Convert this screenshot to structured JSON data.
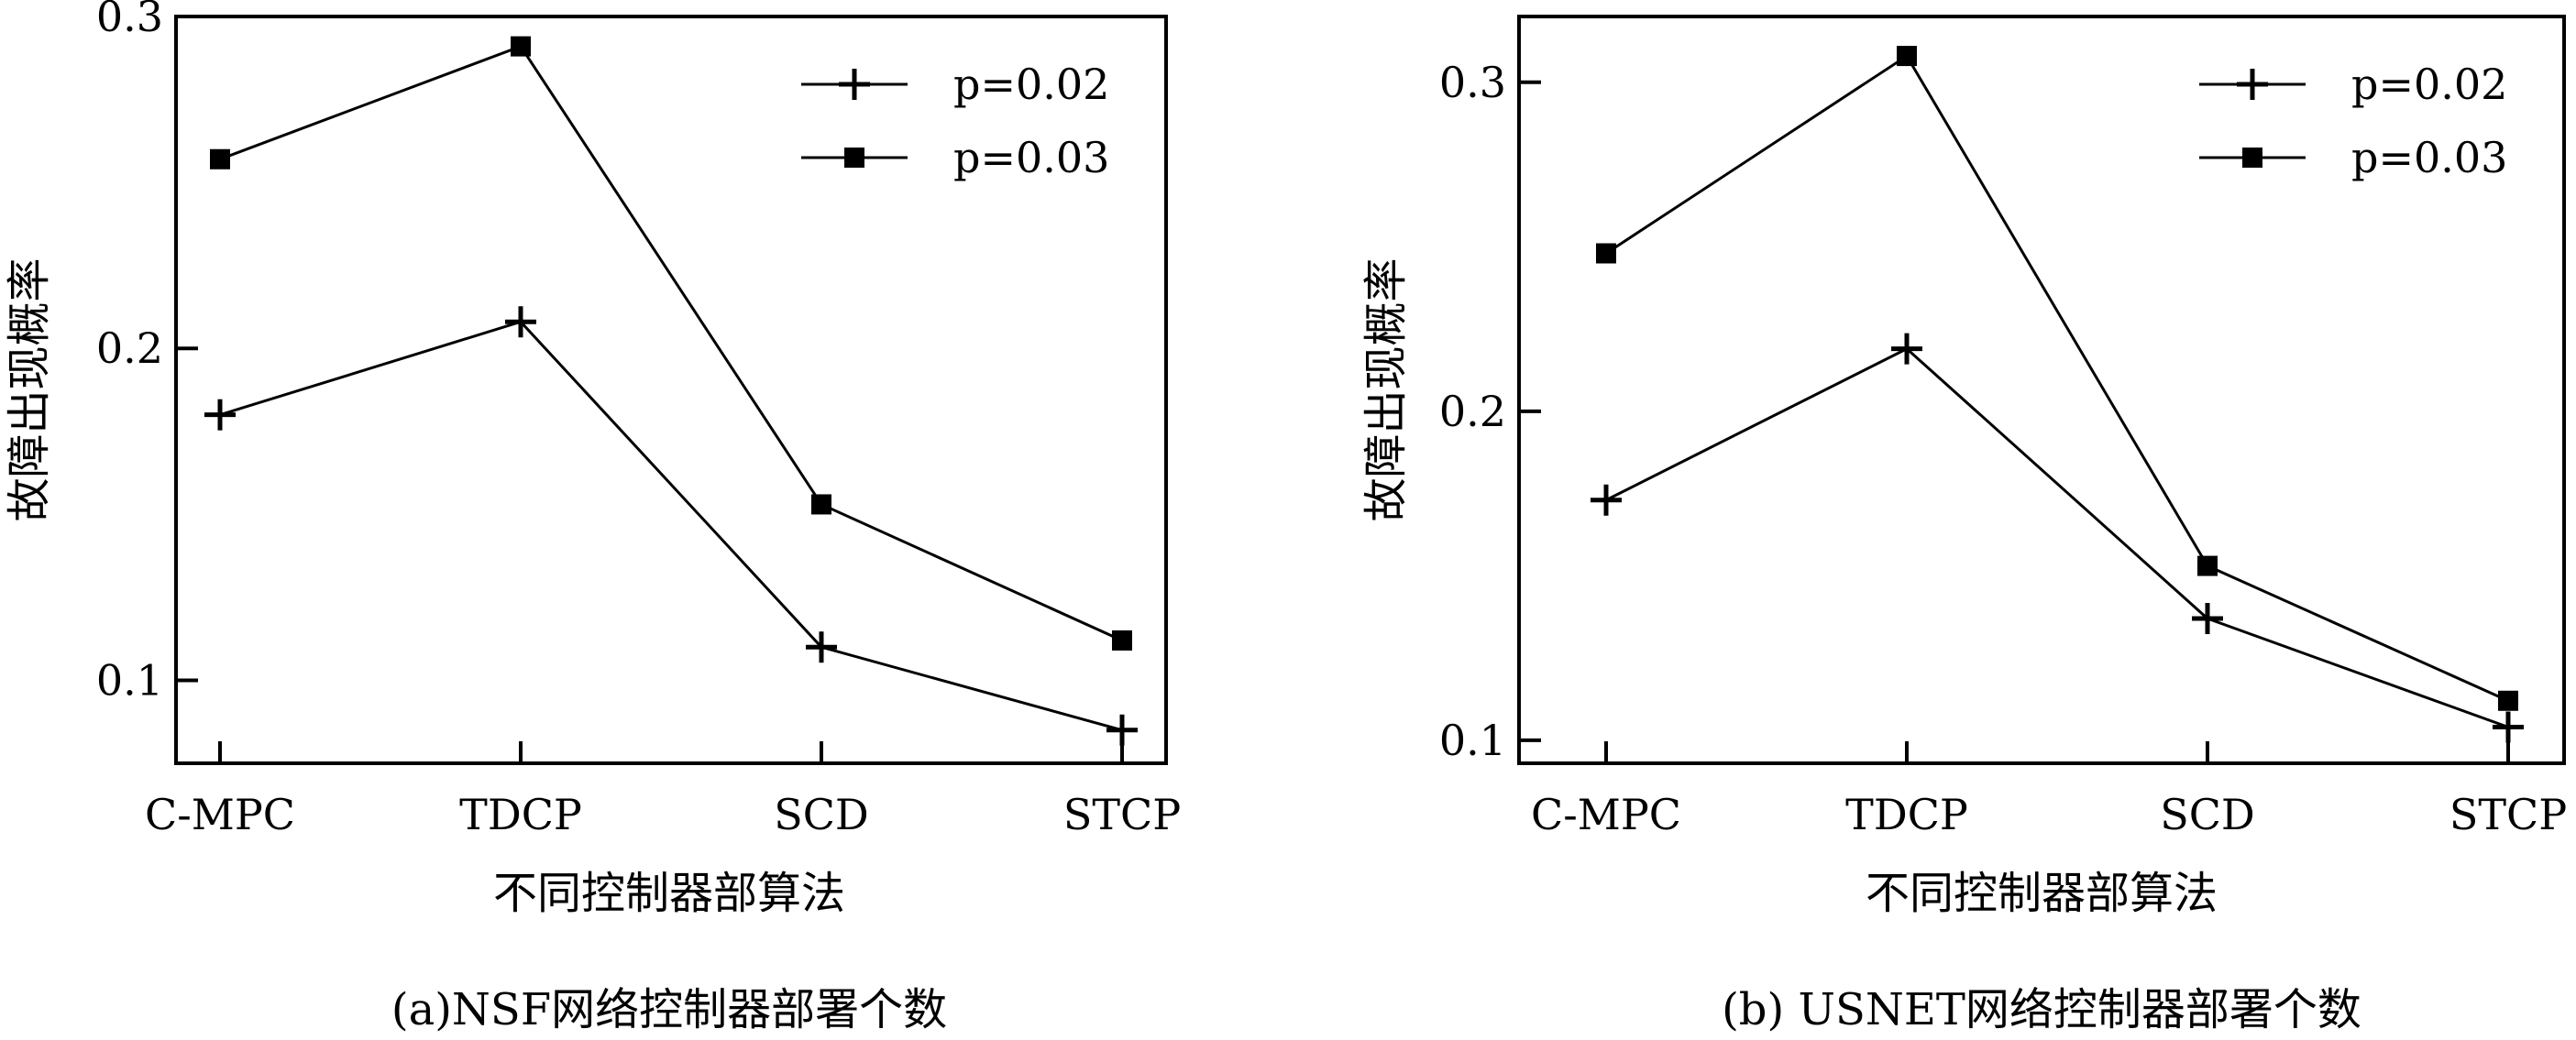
{
  "chart_data": [
    {
      "type": "line",
      "panel": "a",
      "caption": "(a)NSF网络控制器部署个数",
      "xlabel": "不同控制器部算法",
      "ylabel": "故障出现概率",
      "categories": [
        "C-MPC",
        "TDCP",
        "SCD",
        "STCP"
      ],
      "ylim": [
        0.075,
        0.3
      ],
      "yticks": [
        0.1,
        0.2,
        0.3
      ],
      "ytick_labels": [
        "0.1",
        "0.2",
        "0.3"
      ],
      "legend_position": "top-right",
      "grid": false,
      "series": [
        {
          "name": "p=0.02",
          "marker": "plus",
          "values": [
            0.18,
            0.208,
            0.11,
            0.085
          ]
        },
        {
          "name": "p=0.03",
          "marker": "square",
          "values": [
            0.257,
            0.291,
            0.153,
            0.112
          ]
        }
      ]
    },
    {
      "type": "line",
      "panel": "b",
      "caption": "(b) USNET网络控制器部署个数",
      "xlabel": "不同控制器部算法",
      "ylabel": "故障出现概率",
      "categories": [
        "C-MPC",
        "TDCP",
        "SCD",
        "STCP"
      ],
      "ylim": [
        0.093,
        0.32
      ],
      "yticks": [
        0.1,
        0.2,
        0.3
      ],
      "ytick_labels": [
        "0.1",
        "0.2",
        "0.3"
      ],
      "legend_position": "top-right",
      "grid": false,
      "series": [
        {
          "name": "p=0.02",
          "marker": "plus",
          "values": [
            0.173,
            0.219,
            0.137,
            0.104
          ]
        },
        {
          "name": "p=0.03",
          "marker": "square",
          "values": [
            0.248,
            0.308,
            0.153,
            0.112
          ]
        }
      ]
    }
  ]
}
